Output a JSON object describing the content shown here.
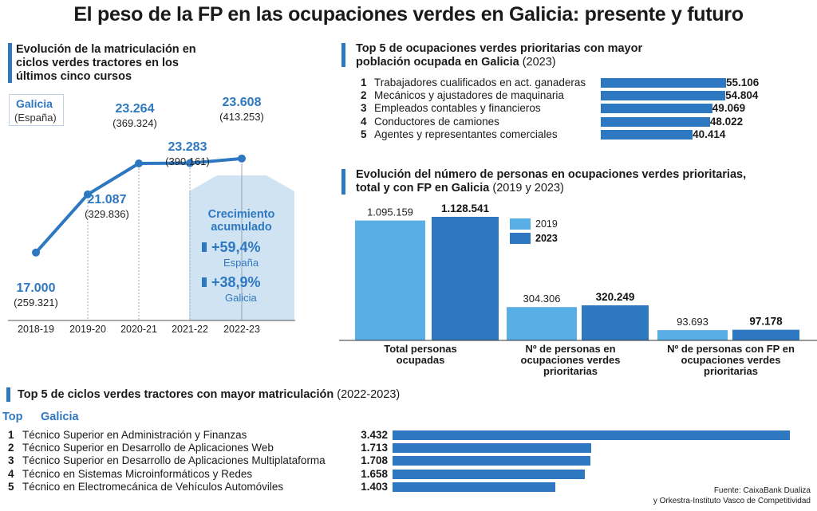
{
  "main_title": "El peso de la FP en las ocupaciones verdes en Galicia: presente y futuro",
  "source_lines": [
    "Fuente: CaixaBank Dualiza",
    "y Orkestra-Instituto Vasco de Competitividad"
  ],
  "colors": {
    "blue_dark": "#2e78c2",
    "blue_light": "#5aaee6",
    "panel_bg": "#cfe3f2"
  },
  "chart_data": [
    {
      "type": "line",
      "title": "Evolución de la matriculación en ciclos verdes tractores en los últimos cinco cursos",
      "legend": {
        "primary": "Galicia",
        "secondary": "(España)"
      },
      "categories": [
        "2018-19",
        "2019-20",
        "2020-21",
        "2021-22",
        "2022-23"
      ],
      "series": [
        {
          "name": "Galicia",
          "values": [
            17000,
            21087,
            23264,
            23283,
            23608
          ],
          "labels": [
            "17.000",
            "21.087",
            "23.264",
            "23.283",
            "23.608"
          ]
        },
        {
          "name": "España",
          "values": [
            259321,
            329836,
            369324,
            390161,
            413253
          ],
          "labels": [
            "(259.321)",
            "(329.836)",
            "(369.324)",
            "(390.161)",
            "(413.253)"
          ]
        }
      ],
      "ylim": [
        15000,
        25000
      ],
      "growth": {
        "title": "Crecimiento acumulado",
        "spain_value": "+59,4%",
        "spain_label": "España",
        "galicia_value": "+38,9%",
        "galicia_label": "Galicia"
      }
    },
    {
      "type": "bar",
      "orientation": "horizontal",
      "title": "Top 5 de ocupaciones verdes prioritarias con mayor población ocupada en Galicia",
      "title_suffix": "(2023)",
      "categories": [
        "Trabajadores cualificados en act. ganaderas",
        "Mecánicos y ajustadores de maquinaria",
        "Empleados contables y financieros",
        "Conductores de camiones",
        "Agentes y representantes comerciales"
      ],
      "ranks": [
        "1",
        "2",
        "3",
        "4",
        "5"
      ],
      "values": [
        55106,
        54804,
        49069,
        48022,
        40414
      ],
      "value_labels": [
        "55.106",
        "54.804",
        "49.069",
        "48.022",
        "40.414"
      ]
    },
    {
      "type": "bar",
      "title": "Evolución del número de personas en ocupaciones verdes prioritarias, total y con FP en Galicia",
      "title_suffix": "(2019 y 2023)",
      "categories": [
        "Total personas ocupadas",
        "Nº de personas en ocupaciones verdes prioritarias",
        "Nº de personas con FP en ocupaciones verdes prioritarias"
      ],
      "series": [
        {
          "name": "2019",
          "values": [
            1095159,
            304306,
            93693
          ],
          "labels": [
            "1.095.159",
            "304.306",
            "93.693"
          ],
          "color": "#5aaee6"
        },
        {
          "name": "2023",
          "values": [
            1128541,
            320249,
            97178
          ],
          "labels": [
            "1.128.541",
            "320.249",
            "97.178"
          ],
          "color": "#2e78c2"
        }
      ],
      "legend_position": "right"
    },
    {
      "type": "bar",
      "orientation": "horizontal",
      "title": "Top 5 de ciclos verdes tractores con mayor matriculación",
      "title_suffix": "(2022-2023)",
      "header_left": "Top",
      "header_right": "Galicia",
      "categories": [
        "Técnico Superior en Administración y Finanzas",
        "Técnico Superior en Desarrollo de Aplicaciones Web",
        "Técnico Superior en Desarrollo de Aplicaciones Multiplataforma",
        "Técnico en Sistemas Microinformáticos y Redes",
        "Técnico en Electromecánica de Vehículos Automóviles"
      ],
      "ranks": [
        "1",
        "2",
        "3",
        "4",
        "5"
      ],
      "values": [
        3432,
        1713,
        1708,
        1658,
        1403
      ],
      "value_labels": [
        "3.432",
        "1.713",
        "1.708",
        "1.658",
        "1.403"
      ]
    }
  ]
}
